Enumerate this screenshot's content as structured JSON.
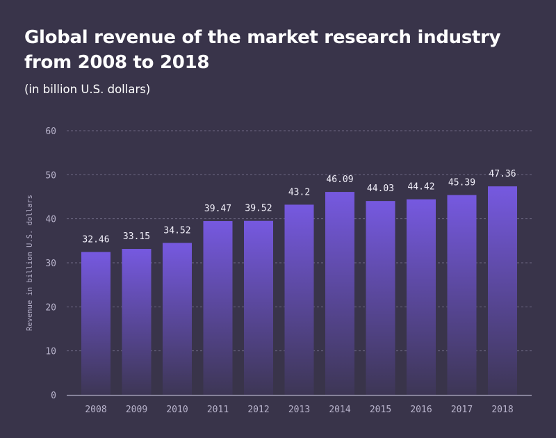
{
  "chart_data": {
    "type": "bar",
    "title": "Global revenue of the market research industry from 2008 to 2018",
    "title_lines": [
      "Global revenue of the market research industry",
      "from 2008 to 2018"
    ],
    "subtitle": "(in billion U.S. dollars)",
    "xlabel": "",
    "ylabel": "Revenue in billion U.S. dollars",
    "categories": [
      "2008",
      "2009",
      "2010",
      "2011",
      "2012",
      "2013",
      "2014",
      "2015",
      "2016",
      "2017",
      "2018"
    ],
    "values": [
      32.46,
      33.15,
      34.52,
      39.47,
      39.52,
      43.2,
      46.09,
      44.03,
      44.42,
      45.39,
      47.36
    ],
    "value_labels": [
      "32.46",
      "33.15",
      "34.52",
      "39.47",
      "39.52",
      "43.2",
      "46.09",
      "44.03",
      "44.42",
      "45.39",
      "47.36"
    ],
    "ylim": [
      0,
      60
    ],
    "yticks": [
      0,
      10,
      20,
      30,
      40,
      50,
      60
    ],
    "grid": true,
    "legend": "none",
    "colors": {
      "background": "#39344a",
      "bar_top": "#7659e0",
      "bar_bottom": "#3d3655",
      "gridline": "#6e6884",
      "axis": "#a9a4bd"
    }
  }
}
